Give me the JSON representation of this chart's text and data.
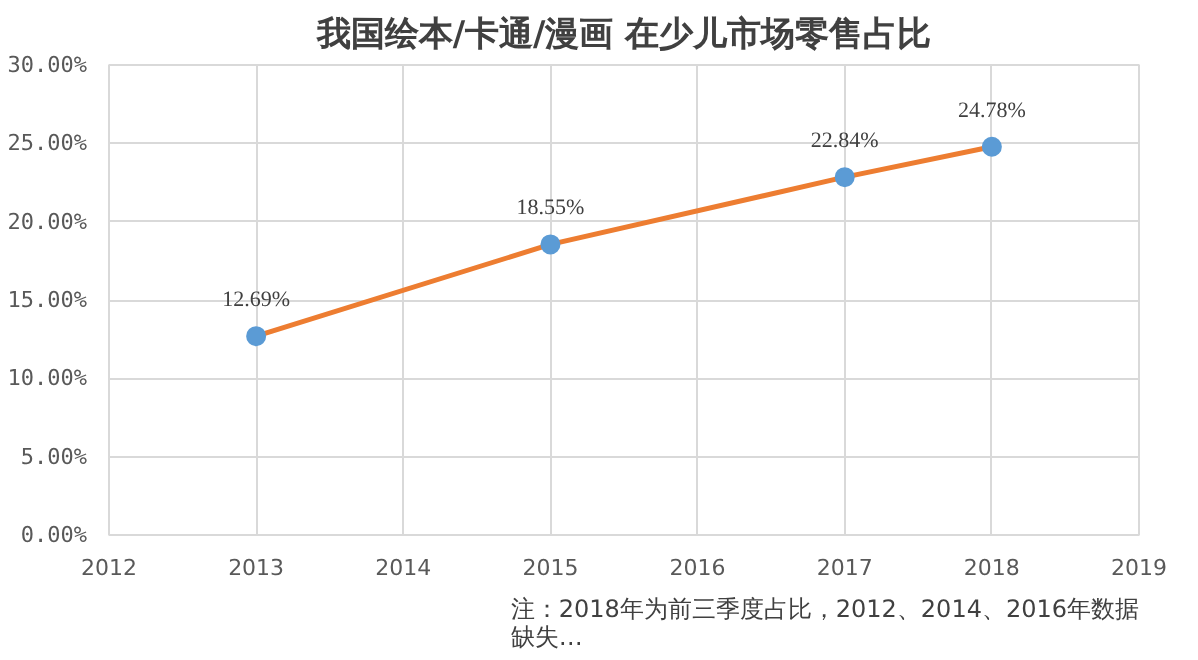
{
  "chart_data": {
    "type": "line",
    "title": "我国绘本/卡通/漫画 在少儿市场零售占比",
    "x": [
      2013,
      2015,
      2017,
      2018
    ],
    "series": [
      {
        "color": "#ed7d31",
        "colors": [
          "#5b9bd5",
          "#5b9bd5",
          "#5b9bd5",
          "#5b9bd5"
        ],
        "values": [
          12.69,
          18.55,
          22.84,
          24.78
        ],
        "value_labels": [
          "12.69%",
          "18.55%",
          "22.84%",
          "24.78%"
        ]
      }
    ],
    "xlim": [
      2012,
      2019
    ],
    "xticks": [
      2012,
      2013,
      2014,
      2015,
      2016,
      2017,
      2018,
      2019
    ],
    "ylim": [
      0,
      30
    ],
    "yticks": [
      {
        "value": 0,
        "label": "0.00%"
      },
      {
        "value": 5,
        "label": "5.00%"
      },
      {
        "value": 10,
        "label": "10.00%"
      },
      {
        "value": 15,
        "label": "15.00%"
      },
      {
        "value": 20,
        "label": "20.00%"
      },
      {
        "value": 25,
        "label": "25.00%"
      },
      {
        "value": 30,
        "label": "30.00%"
      }
    ],
    "grid": true,
    "marker": "circle",
    "line_style": "solid",
    "annotations": [
      "注：2018年为前三季度占比，2012、2014、2016年数据缺失…"
    ]
  }
}
